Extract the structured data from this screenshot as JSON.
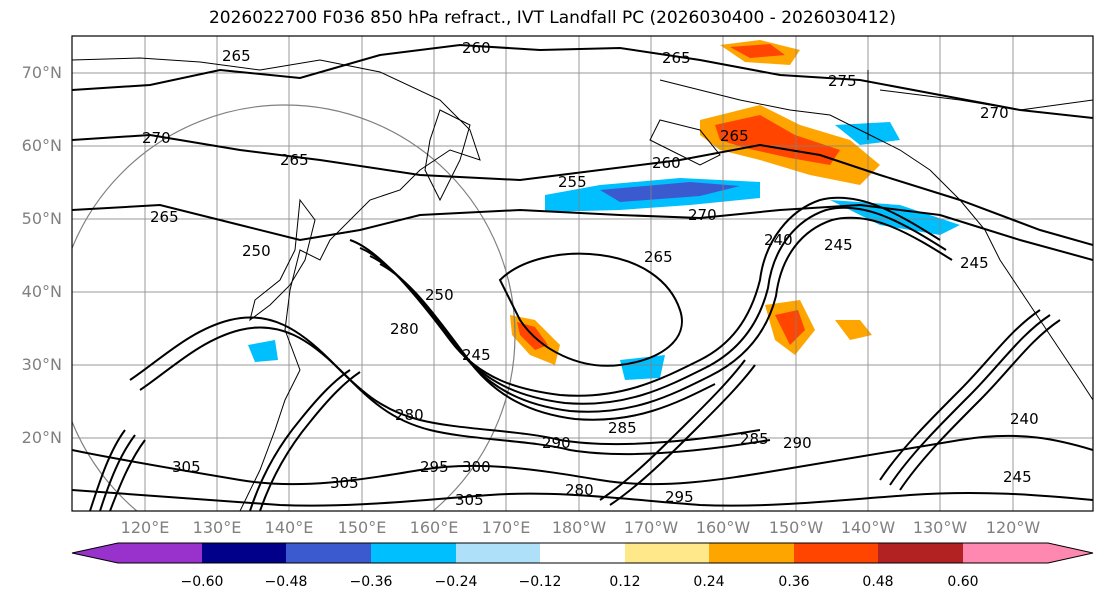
{
  "title": "2026022700 F036 850 hPa refract., IVT Landfall PC (2026030400 - 2026030412)",
  "map": {
    "lat_labels": [
      "70°N",
      "60°N",
      "50°N",
      "40°N",
      "30°N",
      "20°N"
    ],
    "lon_labels": [
      "120°E",
      "130°E",
      "140°E",
      "150°E",
      "160°E",
      "170°E",
      "180°W",
      "170°W",
      "160°W",
      "150°W",
      "140°W",
      "130°W",
      "120°W"
    ],
    "contour_labels": [
      {
        "text": "265"
      },
      {
        "text": "260"
      },
      {
        "text": "265"
      },
      {
        "text": "275"
      },
      {
        "text": "270"
      },
      {
        "text": "270"
      },
      {
        "text": "265"
      },
      {
        "text": "265"
      },
      {
        "text": "260"
      },
      {
        "text": "255"
      },
      {
        "text": "265"
      },
      {
        "text": "270"
      },
      {
        "text": "265"
      },
      {
        "text": "240"
      },
      {
        "text": "245"
      },
      {
        "text": "245"
      },
      {
        "text": "280"
      },
      {
        "text": "250"
      },
      {
        "text": "245"
      },
      {
        "text": "285"
      },
      {
        "text": "280"
      },
      {
        "text": "290"
      },
      {
        "text": "285"
      },
      {
        "text": "290"
      },
      {
        "text": "295"
      },
      {
        "text": "300"
      },
      {
        "text": "305"
      },
      {
        "text": "305"
      },
      {
        "text": "305"
      },
      {
        "text": "280"
      },
      {
        "text": "295"
      },
      {
        "text": "240"
      },
      {
        "text": "245"
      },
      {
        "text": "250"
      }
    ],
    "colors": {
      "land": "#000000",
      "grid": "#808080",
      "contour": "#000000",
      "pos_1": "#ffe88a",
      "pos_2": "#ffa500",
      "pos_3": "#ff4500",
      "pos_4": "#b22222",
      "neg_1": "#aee0fa",
      "neg_2": "#00bfff",
      "neg_3": "#3c5ad0"
    }
  },
  "colorbar": {
    "tick_labels": [
      "−0.60",
      "−0.48",
      "−0.36",
      "−0.24",
      "−0.12",
      "0.12",
      "0.24",
      "0.36",
      "0.48",
      "0.60"
    ],
    "colors": [
      "#9932cc",
      "#00008b",
      "#3c5ad0",
      "#00bfff",
      "#aee0fa",
      "#ffffff",
      "#ffe88a",
      "#ffa500",
      "#ff4500",
      "#b22222",
      "#ff88b0"
    ]
  }
}
